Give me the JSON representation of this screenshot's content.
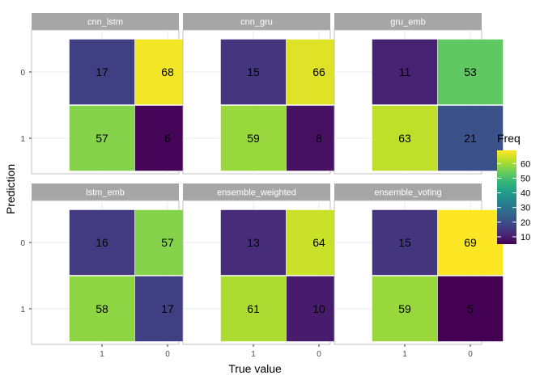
{
  "chart_data": {
    "type": "heatmap",
    "xlabel": "True value",
    "ylabel": "Prediction",
    "x_categories": [
      "1",
      "0"
    ],
    "y_categories": [
      "0",
      "1"
    ],
    "legend": {
      "title": "Freq",
      "min": 5,
      "max": 69,
      "ticks": [
        10,
        20,
        30,
        40,
        50,
        60
      ],
      "colors": [
        "#440154",
        "#482878",
        "#3e4989",
        "#31688e",
        "#26828e",
        "#1f9e89",
        "#35b779",
        "#6ece58",
        "#b5de2b",
        "#fde725"
      ]
    },
    "panels": [
      {
        "name": "cnn_lstm",
        "cells": [
          {
            "x": "1",
            "y": "0",
            "value": 17
          },
          {
            "x": "0",
            "y": "0",
            "value": 68
          },
          {
            "x": "1",
            "y": "1",
            "value": 57
          },
          {
            "x": "0",
            "y": "1",
            "value": 6
          }
        ]
      },
      {
        "name": "cnn_gru",
        "cells": [
          {
            "x": "1",
            "y": "0",
            "value": 15
          },
          {
            "x": "0",
            "y": "0",
            "value": 66
          },
          {
            "x": "1",
            "y": "1",
            "value": 59
          },
          {
            "x": "0",
            "y": "1",
            "value": 8
          }
        ]
      },
      {
        "name": "gru_emb",
        "cells": [
          {
            "x": "1",
            "y": "0",
            "value": 11
          },
          {
            "x": "0",
            "y": "0",
            "value": 53
          },
          {
            "x": "1",
            "y": "1",
            "value": 63
          },
          {
            "x": "0",
            "y": "1",
            "value": 21
          }
        ]
      },
      {
        "name": "lstm_emb",
        "cells": [
          {
            "x": "1",
            "y": "0",
            "value": 16
          },
          {
            "x": "0",
            "y": "0",
            "value": 57
          },
          {
            "x": "1",
            "y": "1",
            "value": 58
          },
          {
            "x": "0",
            "y": "1",
            "value": 17
          }
        ]
      },
      {
        "name": "ensemble_weighted",
        "cells": [
          {
            "x": "1",
            "y": "0",
            "value": 13
          },
          {
            "x": "0",
            "y": "0",
            "value": 64
          },
          {
            "x": "1",
            "y": "1",
            "value": 61
          },
          {
            "x": "0",
            "y": "1",
            "value": 10
          }
        ]
      },
      {
        "name": "ensemble_voting",
        "cells": [
          {
            "x": "1",
            "y": "0",
            "value": 15
          },
          {
            "x": "0",
            "y": "0",
            "value": 69
          },
          {
            "x": "1",
            "y": "1",
            "value": 59
          },
          {
            "x": "0",
            "y": "1",
            "value": 5
          }
        ]
      }
    ]
  }
}
